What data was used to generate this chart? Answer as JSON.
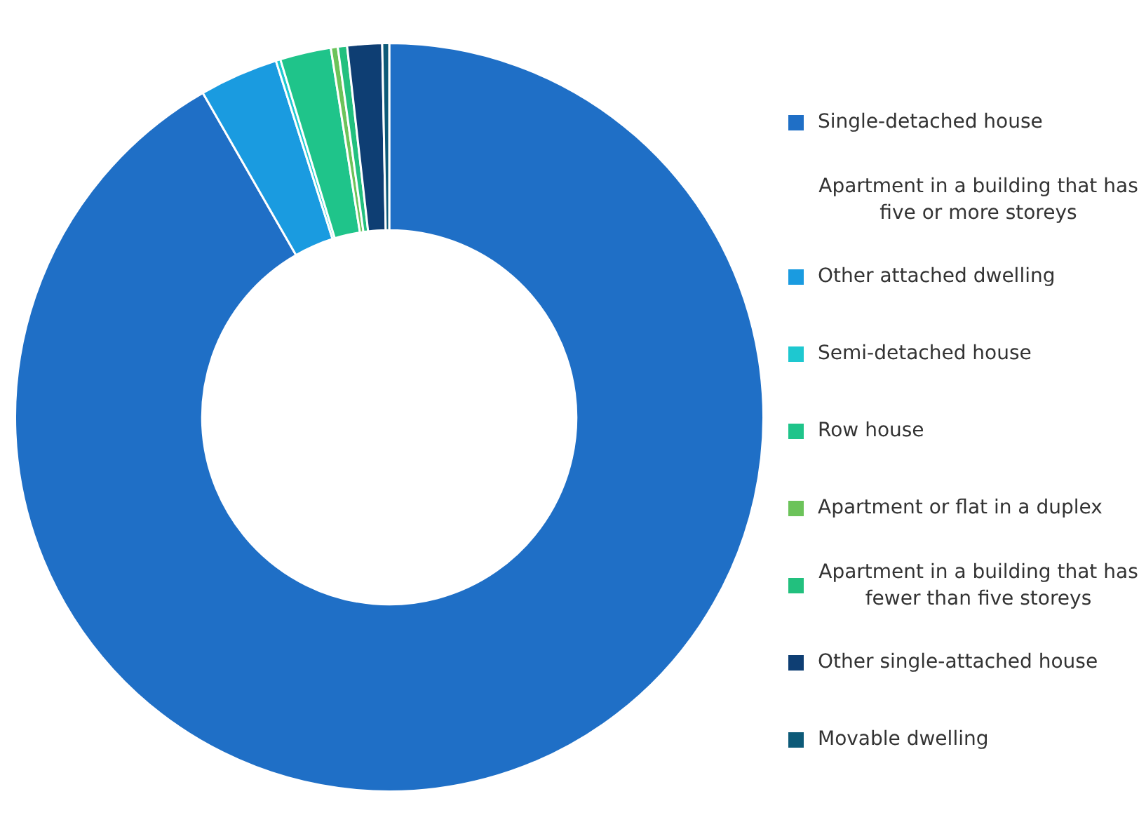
{
  "chart_data": {
    "type": "donut",
    "legend": "right",
    "categories": [
      "Single-detached house",
      "Apartment in a building that has five or more storeys",
      "Other attached dwelling",
      "Semi-detached house",
      "Row house",
      "Apartment or flat in a duplex",
      "Apartment in a building that has fewer than five storeys",
      "Other single-attached house",
      "Movable dwelling"
    ],
    "values": [
      91.7,
      0,
      3.4,
      0.2,
      2.2,
      0.3,
      0.4,
      1.5,
      0.3
    ],
    "colors": [
      "#1f6fc6",
      "#ffffff",
      "#1a9be0",
      "#1ec8d0",
      "#1fc48a",
      "#6cc35a",
      "#22c07e",
      "#0e3e73",
      "#0d5a78"
    ]
  }
}
